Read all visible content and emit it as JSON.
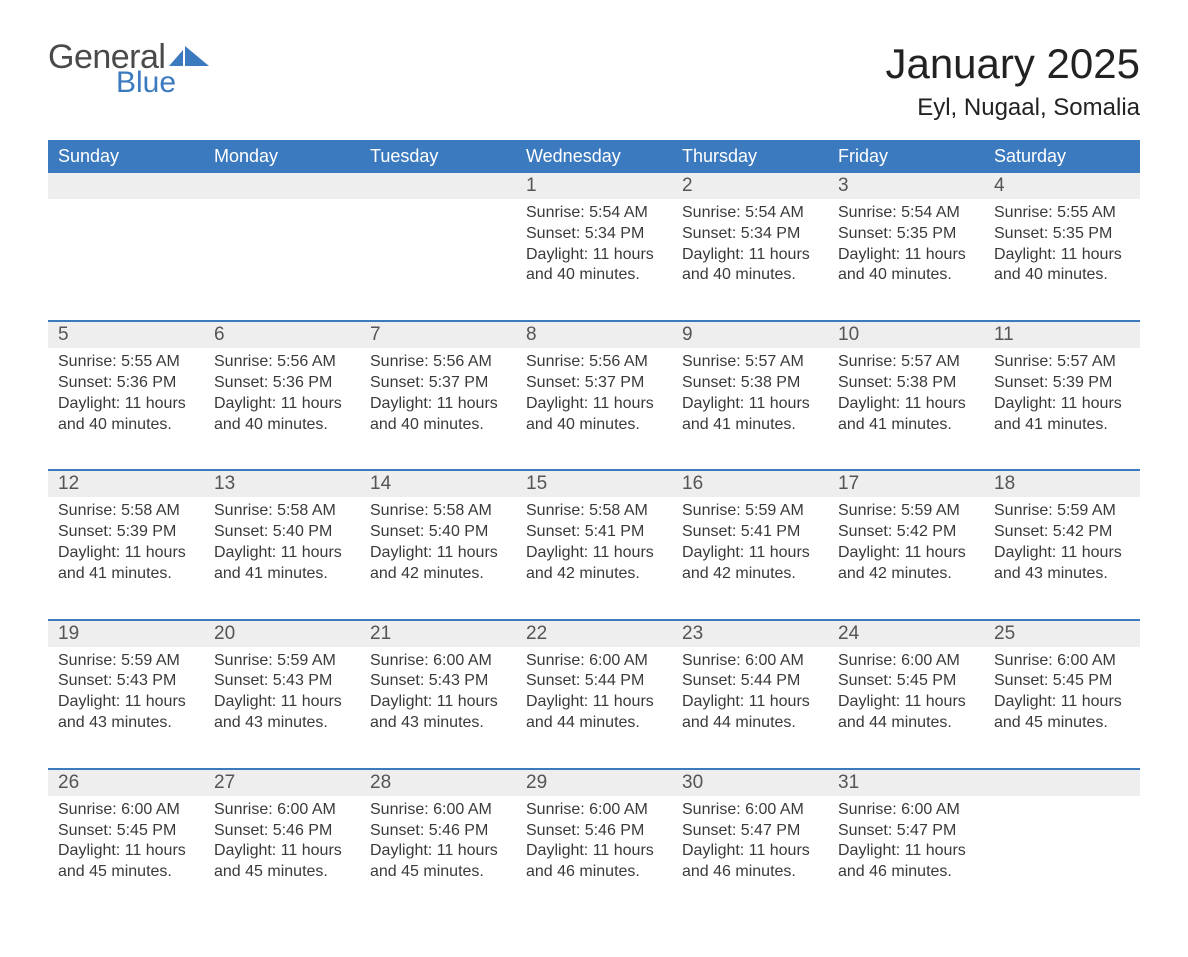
{
  "logo": {
    "text1": "General",
    "text2": "Blue",
    "swoosh_color": "#3b7abf"
  },
  "title": "January 2025",
  "location": "Eyl, Nugaal, Somalia",
  "colors": {
    "header_bg": "#3b7abf",
    "header_text": "#ffffff",
    "row_separator": "#3b7abf",
    "daynum_bg": "#eeeeee",
    "body_text": "#3a3a3a",
    "page_bg": "#ffffff"
  },
  "typography": {
    "title_fontsize": 42,
    "location_fontsize": 24,
    "weekday_fontsize": 18,
    "daynum_fontsize": 19,
    "details_fontsize": 16
  },
  "weekdays": [
    "Sunday",
    "Monday",
    "Tuesday",
    "Wednesday",
    "Thursday",
    "Friday",
    "Saturday"
  ],
  "weeks": [
    [
      null,
      null,
      null,
      {
        "day": 1,
        "sunrise": "5:54 AM",
        "sunset": "5:34 PM",
        "daylight": "11 hours and 40 minutes."
      },
      {
        "day": 2,
        "sunrise": "5:54 AM",
        "sunset": "5:34 PM",
        "daylight": "11 hours and 40 minutes."
      },
      {
        "day": 3,
        "sunrise": "5:54 AM",
        "sunset": "5:35 PM",
        "daylight": "11 hours and 40 minutes."
      },
      {
        "day": 4,
        "sunrise": "5:55 AM",
        "sunset": "5:35 PM",
        "daylight": "11 hours and 40 minutes."
      }
    ],
    [
      {
        "day": 5,
        "sunrise": "5:55 AM",
        "sunset": "5:36 PM",
        "daylight": "11 hours and 40 minutes."
      },
      {
        "day": 6,
        "sunrise": "5:56 AM",
        "sunset": "5:36 PM",
        "daylight": "11 hours and 40 minutes."
      },
      {
        "day": 7,
        "sunrise": "5:56 AM",
        "sunset": "5:37 PM",
        "daylight": "11 hours and 40 minutes."
      },
      {
        "day": 8,
        "sunrise": "5:56 AM",
        "sunset": "5:37 PM",
        "daylight": "11 hours and 40 minutes."
      },
      {
        "day": 9,
        "sunrise": "5:57 AM",
        "sunset": "5:38 PM",
        "daylight": "11 hours and 41 minutes."
      },
      {
        "day": 10,
        "sunrise": "5:57 AM",
        "sunset": "5:38 PM",
        "daylight": "11 hours and 41 minutes."
      },
      {
        "day": 11,
        "sunrise": "5:57 AM",
        "sunset": "5:39 PM",
        "daylight": "11 hours and 41 minutes."
      }
    ],
    [
      {
        "day": 12,
        "sunrise": "5:58 AM",
        "sunset": "5:39 PM",
        "daylight": "11 hours and 41 minutes."
      },
      {
        "day": 13,
        "sunrise": "5:58 AM",
        "sunset": "5:40 PM",
        "daylight": "11 hours and 41 minutes."
      },
      {
        "day": 14,
        "sunrise": "5:58 AM",
        "sunset": "5:40 PM",
        "daylight": "11 hours and 42 minutes."
      },
      {
        "day": 15,
        "sunrise": "5:58 AM",
        "sunset": "5:41 PM",
        "daylight": "11 hours and 42 minutes."
      },
      {
        "day": 16,
        "sunrise": "5:59 AM",
        "sunset": "5:41 PM",
        "daylight": "11 hours and 42 minutes."
      },
      {
        "day": 17,
        "sunrise": "5:59 AM",
        "sunset": "5:42 PM",
        "daylight": "11 hours and 42 minutes."
      },
      {
        "day": 18,
        "sunrise": "5:59 AM",
        "sunset": "5:42 PM",
        "daylight": "11 hours and 43 minutes."
      }
    ],
    [
      {
        "day": 19,
        "sunrise": "5:59 AM",
        "sunset": "5:43 PM",
        "daylight": "11 hours and 43 minutes."
      },
      {
        "day": 20,
        "sunrise": "5:59 AM",
        "sunset": "5:43 PM",
        "daylight": "11 hours and 43 minutes."
      },
      {
        "day": 21,
        "sunrise": "6:00 AM",
        "sunset": "5:43 PM",
        "daylight": "11 hours and 43 minutes."
      },
      {
        "day": 22,
        "sunrise": "6:00 AM",
        "sunset": "5:44 PM",
        "daylight": "11 hours and 44 minutes."
      },
      {
        "day": 23,
        "sunrise": "6:00 AM",
        "sunset": "5:44 PM",
        "daylight": "11 hours and 44 minutes."
      },
      {
        "day": 24,
        "sunrise": "6:00 AM",
        "sunset": "5:45 PM",
        "daylight": "11 hours and 44 minutes."
      },
      {
        "day": 25,
        "sunrise": "6:00 AM",
        "sunset": "5:45 PM",
        "daylight": "11 hours and 45 minutes."
      }
    ],
    [
      {
        "day": 26,
        "sunrise": "6:00 AM",
        "sunset": "5:45 PM",
        "daylight": "11 hours and 45 minutes."
      },
      {
        "day": 27,
        "sunrise": "6:00 AM",
        "sunset": "5:46 PM",
        "daylight": "11 hours and 45 minutes."
      },
      {
        "day": 28,
        "sunrise": "6:00 AM",
        "sunset": "5:46 PM",
        "daylight": "11 hours and 45 minutes."
      },
      {
        "day": 29,
        "sunrise": "6:00 AM",
        "sunset": "5:46 PM",
        "daylight": "11 hours and 46 minutes."
      },
      {
        "day": 30,
        "sunrise": "6:00 AM",
        "sunset": "5:47 PM",
        "daylight": "11 hours and 46 minutes."
      },
      {
        "day": 31,
        "sunrise": "6:00 AM",
        "sunset": "5:47 PM",
        "daylight": "11 hours and 46 minutes."
      },
      null
    ]
  ],
  "labels": {
    "sunrise": "Sunrise: ",
    "sunset": "Sunset: ",
    "daylight": "Daylight: "
  }
}
